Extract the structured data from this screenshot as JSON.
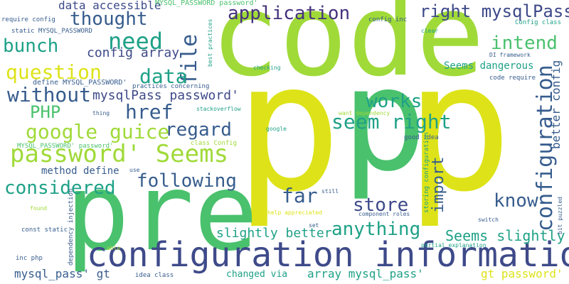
{
  "palette": {
    "yellow": "#dde318",
    "lime": "#a0da39",
    "green": "#4ac16d",
    "teal": "#1fa187",
    "blue": "#365c8d",
    "indigo": "#3e4a89",
    "purple": "#46327e",
    "violet": "#481a6c"
  },
  "words": {
    "code": "code",
    "p": "p",
    "pre": "pre",
    "configuration_information": "configuration information",
    "password_seems": "password' Seems",
    "application": "application",
    "need": "need",
    "question": "question",
    "right_mysqlpass": "right mysqlPass",
    "google_guice": "google guice",
    "seem_right": "seem right",
    "considered": "considered",
    "following": "following",
    "configuration": "configuration",
    "intend": "intend",
    "thought": "thought",
    "file": "file",
    "bunch": "bunch",
    "config_array": "config array",
    "data": "data",
    "without": "without",
    "works": "works",
    "php": "PHP",
    "href": "href",
    "regard": "regard",
    "mysqlpass_password": "mysqlPass password'",
    "anything": "anything",
    "store": "store",
    "far": "far",
    "know": "know",
    "import": "import",
    "slightly_better": "slightly better",
    "seems_slightly": "Seems slightly",
    "mysql_pass_gt": "mysql_pass' gt",
    "array_mysql_pass": "array mysql_pass'",
    "gt_password": "gt password'",
    "data_accessible": "data accessible",
    "method_define": "method define",
    "seems_dangerous": "Seems dangerous",
    "better_config": "better config",
    "define_mysql_password": "define MYSQL_PASSWORD'",
    "mysql_password_password_top": "MYSQL_PASSWORD password'",
    "require_config": "require config",
    "static_mysql_password": "static MYSQL_PASSWORD",
    "config_inc": "config inc",
    "config_class": "Config class",
    "best_practices": "best practices",
    "di_framework": "DI framework",
    "practices_concerning": "practices concerning",
    "checking": "checking",
    "clear": "clear",
    "code_require": "code require",
    "stackoverflow": "stackoverflow",
    "want_dependency": "want dependency",
    "thing": "thing",
    "class_config": "class Config",
    "mysql_password_password": "MYSQL_PASSWORD' password'",
    "google": "google",
    "good_idea": "good idea",
    "storing_configuration": "storing configuration",
    "use": "use",
    "still": "still",
    "help_appreciated": "help appreciated",
    "found": "found",
    "component_roles": "component roles",
    "const_static": "const static",
    "dependency_injection": "dependency injection",
    "switch": "switch",
    "bit_puzzled": "bit puzzled",
    "set": "set",
    "able": "able",
    "partial_explanation": "partial explanation",
    "inc_php": "inc php",
    "changed_via": "changed via",
    "idea_class": "idea class"
  }
}
